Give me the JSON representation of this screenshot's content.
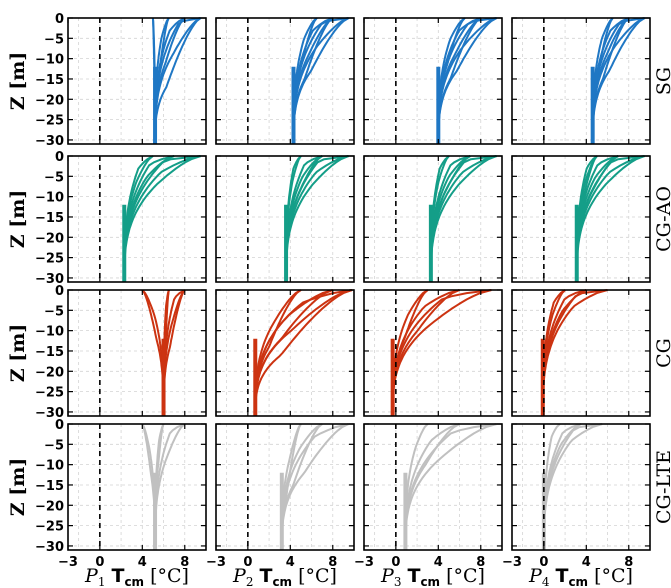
{
  "chart_data": {
    "type": "line",
    "layout": "4x4 small multiples",
    "rows": [
      {
        "label": "SG",
        "color": "#1f77c4"
      },
      {
        "label": "CG-AO",
        "color": "#149e88"
      },
      {
        "label": "CG",
        "color": "#cc3311"
      },
      {
        "label": "CG-LTE",
        "color": "#c0c0c0"
      }
    ],
    "columns": [
      {
        "profile": "P",
        "index": "1",
        "unit_label": "T",
        "unit_sub": "cm",
        "unit_rest": " [°C]"
      },
      {
        "profile": "P",
        "index": "2",
        "unit_label": "T",
        "unit_sub": "cm",
        "unit_rest": " [°C]"
      },
      {
        "profile": "P",
        "index": "3",
        "unit_label": "T",
        "unit_sub": "cm",
        "unit_rest": " [°C]"
      },
      {
        "profile": "P",
        "index": "4",
        "unit_label": "T",
        "unit_sub": "cm",
        "unit_rest": " [°C]"
      }
    ],
    "ylabel": "Z [m]",
    "xlim": [
      -3,
      10
    ],
    "ylim": [
      -31,
      0
    ],
    "xticks": [
      -3,
      0,
      4,
      8
    ],
    "yticks": [
      0,
      -5,
      -10,
      -15,
      -20,
      -25,
      -30
    ],
    "grid": true,
    "reference_line": {
      "x": 0,
      "style": "dashed"
    },
    "panels": [
      [
        {
          "deep": 5.2,
          "surface": [
            9.5,
            8.0,
            6.5,
            5.0
          ],
          "depths": [
            -1,
            -3,
            -5,
            -7,
            -9,
            -11,
            -13,
            -15,
            -17
          ]
        },
        {
          "deep": 4.3,
          "surface": [
            9.5,
            8.0,
            6.5
          ],
          "depths": [
            -1,
            -3,
            -5,
            -7,
            -9,
            -11,
            -13,
            -15
          ]
        },
        {
          "deep": 4.0,
          "surface": [
            9.5,
            8.0,
            6.5
          ],
          "depths": [
            -1,
            -3,
            -5,
            -7,
            -9,
            -11,
            -13,
            -15
          ]
        },
        {
          "deep": 4.6,
          "surface": [
            9.5,
            8.0,
            6.5
          ],
          "depths": [
            -1,
            -3,
            -5,
            -7,
            -9,
            -11,
            -13,
            -15
          ]
        }
      ],
      [
        {
          "deep": 2.3,
          "surface": [
            9.5,
            7.0,
            5.0
          ],
          "depths": [
            -1,
            -2,
            -3,
            -4,
            -5,
            -6,
            -7
          ]
        },
        {
          "deep": 3.6,
          "surface": [
            9.5,
            7.0,
            5.0
          ],
          "depths": [
            -1,
            -2,
            -3,
            -4,
            -5,
            -6,
            -7,
            -8
          ]
        },
        {
          "deep": 3.3,
          "surface": [
            9.5,
            7.0,
            5.0
          ],
          "depths": [
            -1,
            -2,
            -3,
            -4,
            -5,
            -6,
            -7,
            -8
          ]
        },
        {
          "deep": 3.1,
          "surface": [
            9.5,
            7.0,
            5.0
          ],
          "depths": [
            -1,
            -2,
            -3,
            -4,
            -5,
            -6,
            -7,
            -8,
            -9
          ]
        }
      ],
      [
        {
          "deep": 6.0,
          "surface": [
            8.0,
            6.5,
            4.0
          ],
          "depths": [
            -2,
            -4,
            -6,
            -8,
            -10,
            -12,
            -14,
            -16
          ]
        },
        {
          "deep": 0.7,
          "surface": [
            9.8,
            8.0,
            5.0
          ],
          "depths": [
            -3,
            -6,
            -8,
            -10,
            -12,
            -14,
            -16
          ]
        },
        {
          "deep": -0.3,
          "surface": [
            9.0,
            6.0,
            3.0
          ],
          "depths": [
            -2,
            -4,
            -6,
            -8,
            -10,
            -12
          ]
        },
        {
          "deep": -0.1,
          "surface": [
            6.0,
            4.0,
            2.0
          ],
          "depths": [
            -1,
            -2,
            -3,
            -4,
            -5,
            -6
          ]
        }
      ],
      [
        {
          "deep": 5.2,
          "surface": [
            8.0,
            6.0,
            4.0
          ],
          "depths": [
            -2,
            -4,
            -6,
            -8,
            -10,
            -12
          ]
        },
        {
          "deep": 3.2,
          "surface": [
            9.5,
            7.0,
            5.0
          ],
          "depths": [
            -3,
            -6,
            -9,
            -12,
            -15,
            -18
          ]
        },
        {
          "deep": 0.9,
          "surface": [
            9.5,
            6.0,
            3.0
          ],
          "depths": [
            -2,
            -4,
            -6,
            -8,
            -10
          ]
        },
        {
          "deep": 0.0,
          "surface": [
            5.5,
            3.5,
            1.5
          ],
          "depths": [
            -1,
            -2,
            -3,
            -4,
            -5
          ]
        }
      ]
    ]
  }
}
